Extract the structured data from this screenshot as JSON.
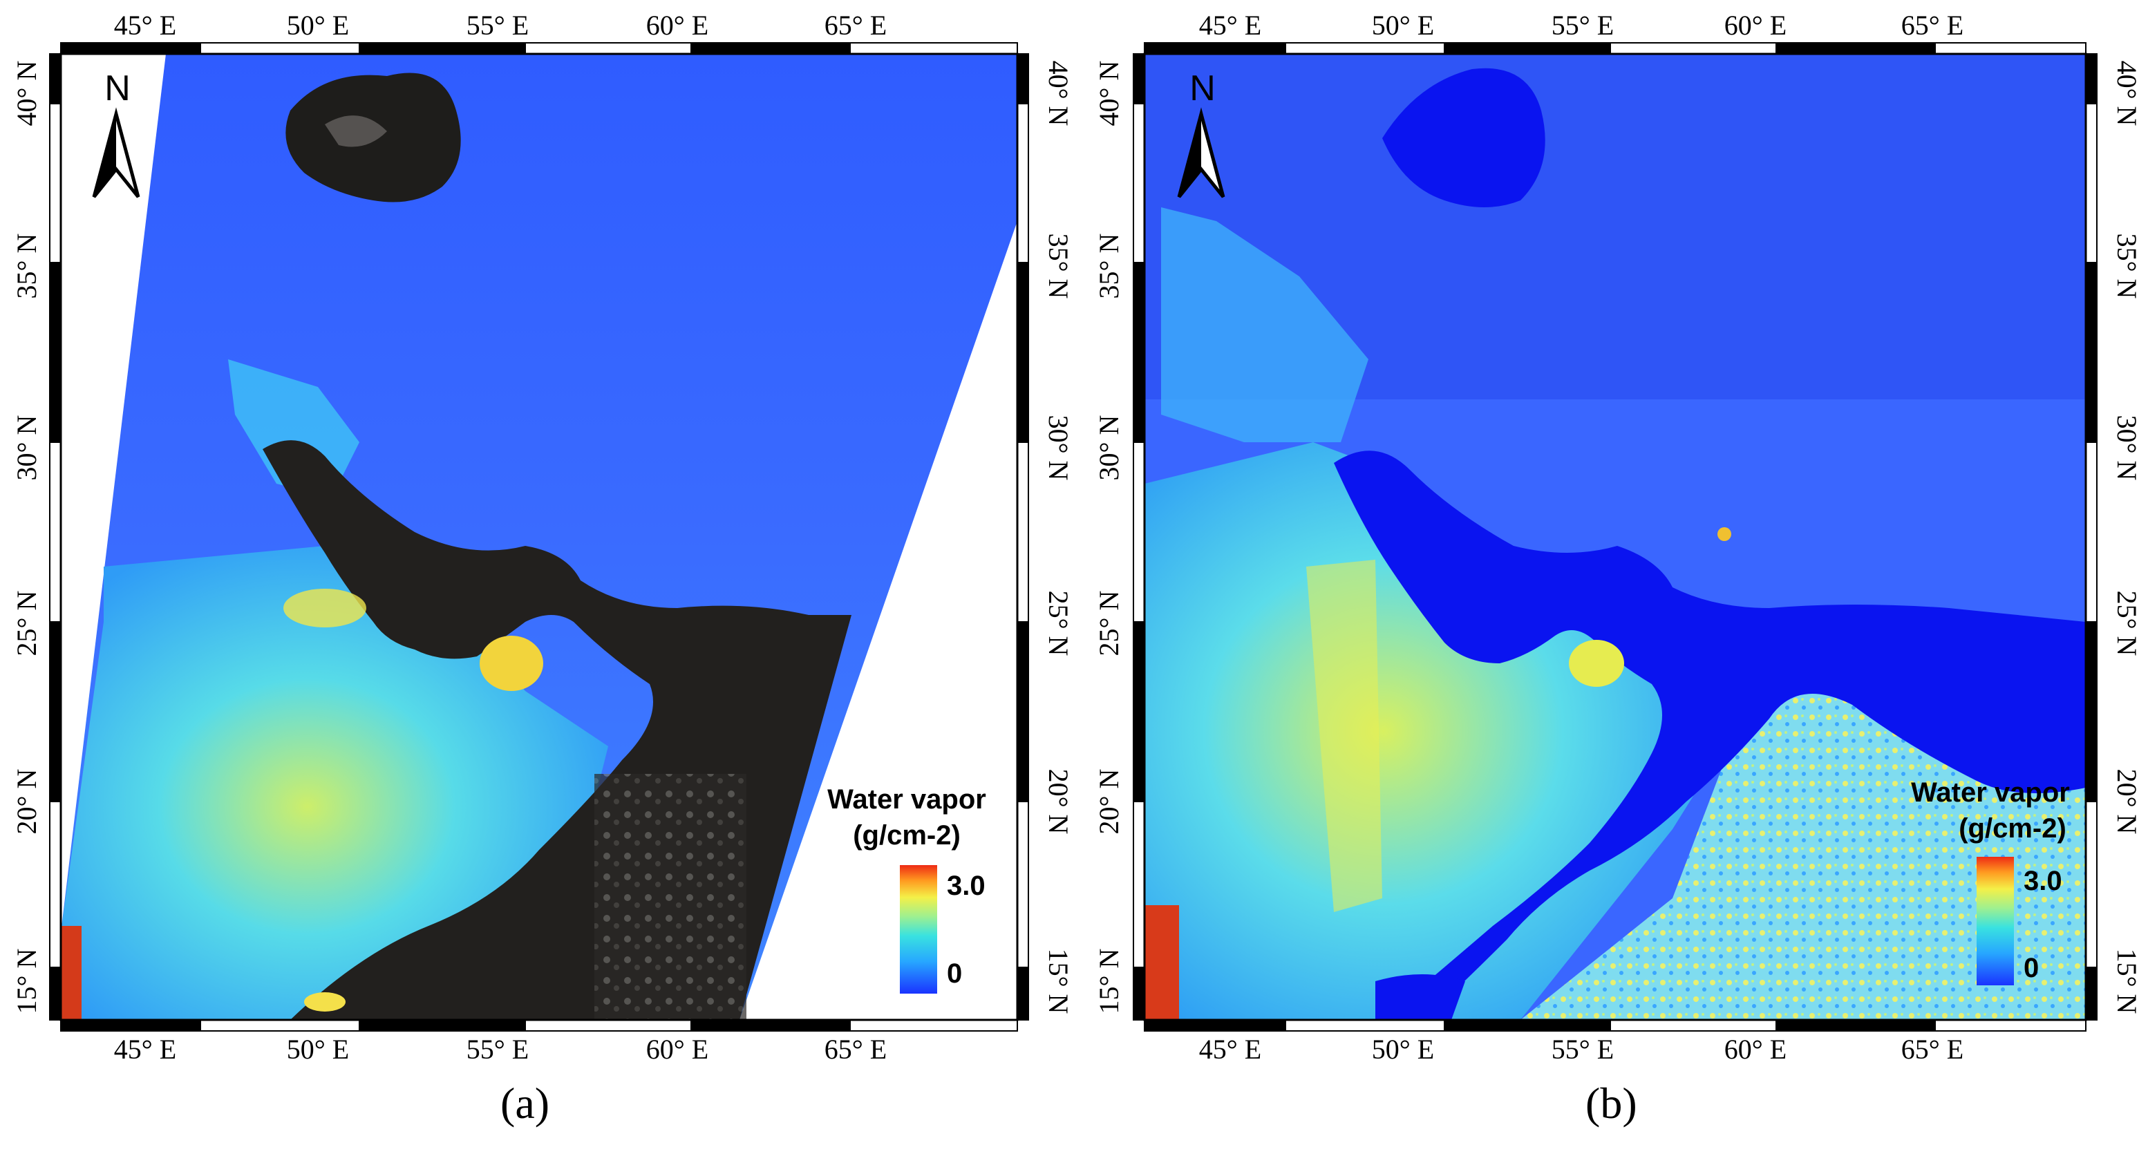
{
  "panels": [
    {
      "id": "a",
      "caption": "(a)",
      "x_ticks": [
        "45° E",
        "50° E",
        "55° E",
        "60° E",
        "65° E"
      ],
      "y_ticks": [
        "40° N",
        "35° N",
        "30° N",
        "25° N",
        "20° N",
        "15° N"
      ],
      "north_label": "N",
      "legend": {
        "title_line1": "Water vapor",
        "title_line2": "(g/cm-2)",
        "max_label": "3.0",
        "min_label": "0"
      }
    },
    {
      "id": "b",
      "caption": "(b)",
      "x_ticks": [
        "45° E",
        "50° E",
        "55° E",
        "60° E",
        "65° E"
      ],
      "y_ticks": [
        "40° N",
        "35° N",
        "30° N",
        "25° N",
        "20° N",
        "15° N"
      ],
      "north_label": "N",
      "legend": {
        "title_line1": "Water vapor",
        "title_line2": "(g/cm-2)",
        "max_label": "3.0",
        "min_label": "0"
      }
    }
  ],
  "colors": {
    "water_vapor_low": "#1f3cff",
    "water_vapor_mid": "#3ad6f0",
    "water_vapor_high": "#f2f04a",
    "water_vapor_max": "#e0301e",
    "masked_water_dark": "#1c1a18",
    "masked_water_blue": "#0a14f0"
  }
}
